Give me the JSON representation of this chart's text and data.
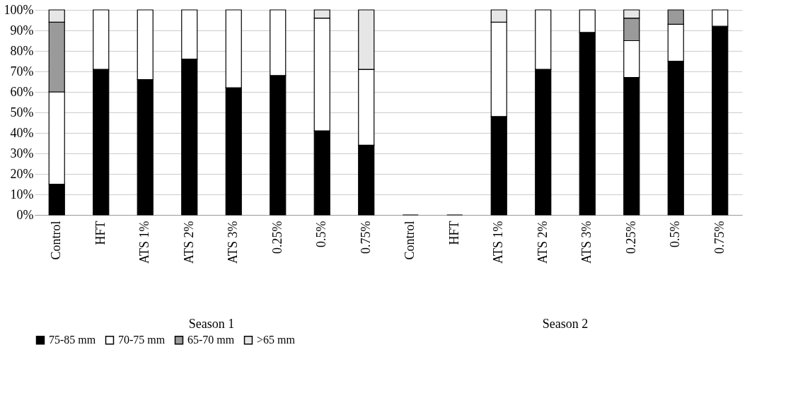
{
  "chart_data": {
    "type": "bar",
    "stacked": true,
    "categories": [
      "Control",
      "HFT",
      "ATS 1%",
      "ATS 2%",
      "ATS 3%",
      "0.25%",
      "0.5%",
      "0.75%",
      "Control",
      "HFT",
      "ATS 1%",
      "ATS 2%",
      "ATS 3%",
      "0.25%",
      "0.5%",
      "0.75%"
    ],
    "series": [
      {
        "name": "75-85 mm",
        "color": "#000000",
        "values": [
          15,
          71,
          66,
          76,
          62,
          68,
          41,
          34,
          0,
          0,
          48,
          71,
          89,
          67,
          75,
          92
        ]
      },
      {
        "name": "70-75 mm",
        "color": "#ffffff",
        "values": [
          45,
          29,
          34,
          24,
          38,
          32,
          55,
          37,
          0,
          0,
          46,
          29,
          11,
          18,
          18,
          8
        ]
      },
      {
        "name": "65-70 mm",
        "color": "#9a9a9a",
        "values": [
          34,
          0,
          0,
          0,
          0,
          0,
          0,
          0,
          0,
          0,
          0,
          0,
          0,
          11,
          7,
          0
        ]
      },
      {
        "name": ">65 mm",
        "color": "#e6e6e6",
        "values": [
          6,
          0,
          0,
          0,
          0,
          0,
          4,
          29,
          0,
          0,
          6,
          0,
          0,
          4,
          0,
          0
        ]
      }
    ],
    "ylim": [
      0,
      100
    ],
    "yticks": [
      {
        "value": 0,
        "label": "0%"
      },
      {
        "value": 10,
        "label": "10%"
      },
      {
        "value": 20,
        "label": "20%"
      },
      {
        "value": 30,
        "label": "30%"
      },
      {
        "value": 40,
        "label": "40%"
      },
      {
        "value": 50,
        "label": "50%"
      },
      {
        "value": 60,
        "label": "60%"
      },
      {
        "value": 70,
        "label": "70%"
      },
      {
        "value": 80,
        "label": "80%"
      },
      {
        "value": 90,
        "label": "90%"
      },
      {
        "value": 100,
        "label": "100%"
      }
    ],
    "grid": "y",
    "legend": "bottom",
    "annotations": [
      "Season 1",
      "Season 2"
    ]
  }
}
